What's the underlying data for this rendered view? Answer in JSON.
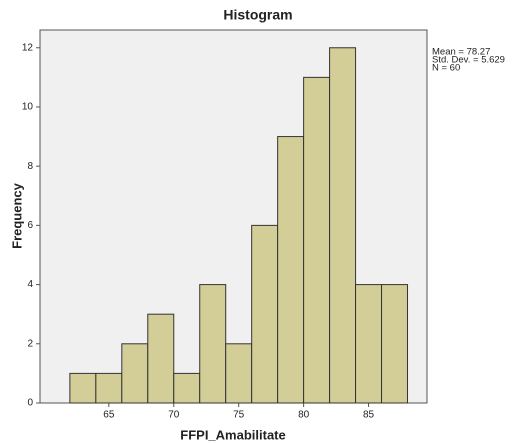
{
  "chart_data": {
    "type": "histogram",
    "title": "Histogram",
    "x_label": "FFPI_Amabilitate",
    "y_label": "Frequency",
    "bins": [
      62,
      64,
      66,
      68,
      70,
      72,
      74,
      76,
      78,
      80,
      82,
      84,
      86,
      88
    ],
    "counts": [
      1,
      1,
      2,
      3,
      1,
      4,
      2,
      6,
      9,
      11,
      12,
      4,
      4
    ],
    "color": "#d3ce97",
    "xlim": [
      59.7,
      89.5
    ],
    "xticks": [
      65,
      70,
      75,
      80,
      85
    ],
    "ylim": [
      0,
      12.6
    ],
    "yticks": [
      0,
      2,
      4,
      6,
      8,
      10,
      12
    ],
    "annotations": [
      "Mean = 78.27",
      "Std. Dev. = 5.629",
      "N = 60"
    ]
  }
}
